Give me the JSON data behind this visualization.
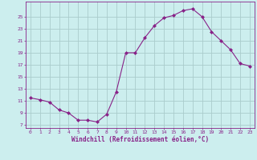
{
  "x": [
    0,
    1,
    2,
    3,
    4,
    5,
    6,
    7,
    8,
    9,
    10,
    11,
    12,
    13,
    14,
    15,
    16,
    17,
    18,
    19,
    20,
    21,
    22,
    23
  ],
  "y": [
    11.5,
    11.2,
    10.8,
    9.5,
    9.0,
    7.8,
    7.8,
    7.5,
    8.8,
    12.5,
    19.0,
    19.0,
    21.5,
    23.5,
    24.8,
    25.2,
    26.0,
    26.3,
    25.0,
    22.5,
    21.0,
    19.5,
    17.2,
    16.8
  ],
  "line_color": "#882288",
  "marker": "D",
  "marker_size": 2.0,
  "bg_color": "#cceeee",
  "grid_color": "#aacccc",
  "xlabel": "Windchill (Refroidissement éolien,°C)",
  "xlabel_color": "#882288",
  "tick_color": "#882288",
  "yticks": [
    7,
    9,
    11,
    13,
    15,
    17,
    19,
    21,
    23,
    25
  ],
  "ylim": [
    6.5,
    27.5
  ],
  "xlim": [
    -0.5,
    23.5
  ],
  "tick_fontsize": 4.5,
  "xlabel_fontsize": 5.5
}
